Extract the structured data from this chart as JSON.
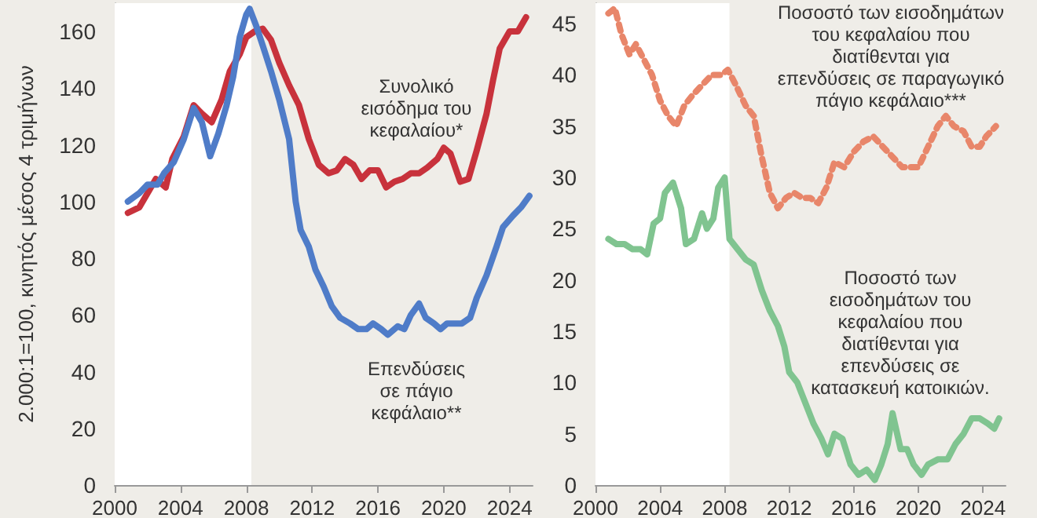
{
  "chart_data": [
    {
      "type": "line",
      "ylabel": "2.000:1=100, κινητός μέσος 4 τριμήνων",
      "xlim": [
        2000,
        2025.4
      ],
      "xticks": [
        2000,
        2004,
        2008,
        2012,
        2016,
        2020,
        2024
      ],
      "ylim": [
        0,
        170
      ],
      "yticks": [
        0,
        20,
        40,
        60,
        80,
        100,
        120,
        140,
        160
      ],
      "grid": false,
      "marker": "none",
      "line_style": "solid",
      "bands": [
        {
          "axis": "x",
          "from": 2000,
          "to": 2008.3,
          "color": "#ffffff"
        }
      ],
      "series": [
        {
          "name": "Συνολικό εισόδημα του κεφαλαίου*",
          "color": "#c8323c",
          "x": [
            2000.8,
            2001.5,
            2002,
            2002.5,
            2003.1,
            2003.5,
            2004.2,
            2004.8,
            2005.3,
            2005.9,
            2006.5,
            2007,
            2007.6,
            2008,
            2008.5,
            2009,
            2009.5,
            2010,
            2010.6,
            2011.2,
            2011.8,
            2012.4,
            2013,
            2013.5,
            2014,
            2014.5,
            2015,
            2015.5,
            2016,
            2016.5,
            2017,
            2017.5,
            2018,
            2018.5,
            2019,
            2019.6,
            2020,
            2020.4,
            2021,
            2021.5,
            2022,
            2022.6,
            2023,
            2023.4,
            2024,
            2024.5,
            2025
          ],
          "values": [
            96,
            98,
            103,
            108,
            105,
            115,
            123,
            134,
            131,
            128,
            136,
            146,
            152,
            158,
            160,
            161,
            157,
            149,
            141,
            134,
            122,
            113,
            110,
            111,
            115,
            113,
            108,
            111,
            111,
            105,
            107,
            108,
            110,
            110,
            112,
            115,
            119,
            117,
            107,
            108,
            118,
            131,
            143,
            154,
            160,
            160,
            165
          ]
        },
        {
          "name": "Επενδύσεις σε πάγιο κεφάλαιο**",
          "color": "#4f7cc8",
          "x": [
            2000.8,
            2001.5,
            2002,
            2002.6,
            2003,
            2003.6,
            2004.2,
            2004.8,
            2005.3,
            2005.8,
            2006.3,
            2006.8,
            2007.2,
            2007.6,
            2008,
            2008.2,
            2008.6,
            2009,
            2009.5,
            2010,
            2010.6,
            2011,
            2011.3,
            2011.8,
            2012.2,
            2012.7,
            2013.2,
            2013.7,
            2014.3,
            2014.8,
            2015.3,
            2015.7,
            2016.2,
            2016.6,
            2017.2,
            2017.6,
            2018,
            2018.5,
            2018.9,
            2019.4,
            2019.8,
            2020.2,
            2020.6,
            2021.1,
            2021.6,
            2022,
            2022.6,
            2023.2,
            2023.6,
            2024.2,
            2024.7,
            2025.2
          ],
          "values": [
            100,
            103,
            106,
            106,
            110,
            114,
            122,
            133,
            128,
            116,
            124,
            134,
            144,
            158,
            166,
            168,
            162,
            155,
            146,
            136,
            122,
            100,
            90,
            84,
            76,
            70,
            63,
            59,
            57,
            55,
            55,
            57,
            55,
            53,
            56,
            55,
            60,
            64,
            59,
            57,
            55,
            57,
            57,
            57,
            59,
            66,
            74,
            84,
            91,
            95,
            98,
            102
          ]
        }
      ]
    },
    {
      "type": "line",
      "xlim": [
        2000,
        2025.4
      ],
      "xticks": [
        2000,
        2004,
        2008,
        2012,
        2016,
        2020,
        2024
      ],
      "ylim": [
        0,
        47
      ],
      "yticks": [
        0,
        5,
        10,
        15,
        20,
        25,
        30,
        35,
        40,
        45
      ],
      "grid": false,
      "marker": "none",
      "bands": [
        {
          "axis": "x",
          "from": 2000,
          "to": 2008.3,
          "color": "#ffffff"
        }
      ],
      "series": [
        {
          "name": "Ποσοστό των εισοδημάτων του κεφαλαίου που διατίθενται για επενδύσεις σε παραγωγικό πάγιο κεφάλαιο***",
          "color": "#e8866a",
          "line_style": "dotted",
          "x": [
            2000.8,
            2001.2,
            2001.6,
            2002.1,
            2002.5,
            2003,
            2003.5,
            2004,
            2004.5,
            2005,
            2005.5,
            2006,
            2006.6,
            2007.2,
            2007.8,
            2008.2,
            2008.7,
            2009.3,
            2009.8,
            2010.3,
            2010.8,
            2011.3,
            2011.8,
            2012.3,
            2012.8,
            2013.3,
            2013.8,
            2014.3,
            2014.8,
            2015.4,
            2016,
            2016.6,
            2017.2,
            2017.8,
            2018.4,
            2019,
            2019.6,
            2020,
            2020.6,
            2021.2,
            2021.7,
            2022.2,
            2022.8,
            2023.3,
            2023.8,
            2024.2,
            2024.8
          ],
          "values": [
            46,
            46.5,
            44,
            42,
            43,
            41.5,
            40,
            37.5,
            36,
            35,
            37,
            38,
            39,
            40,
            40,
            40.5,
            39,
            37,
            36,
            32,
            28.5,
            27,
            28,
            28.5,
            28,
            28,
            27.5,
            29,
            31.5,
            31,
            32.5,
            33.5,
            34,
            33,
            32,
            31,
            31,
            31,
            33,
            35,
            36,
            35,
            34.5,
            33,
            33,
            34,
            35
          ]
        },
        {
          "name": "Ποσοστό των εισοδημάτων του κεφαλαίου που διατίθενται για επενδύσεις σε κατασκευή κατοικιών.",
          "color": "#80c490",
          "line_style": "solid",
          "x": [
            2000.8,
            2001.3,
            2001.8,
            2002.3,
            2002.8,
            2003.2,
            2003.6,
            2004,
            2004.3,
            2004.8,
            2005.3,
            2005.6,
            2006.1,
            2006.6,
            2006.9,
            2007.3,
            2007.6,
            2008,
            2008.3,
            2008.8,
            2009.3,
            2009.8,
            2010.3,
            2010.8,
            2011.3,
            2011.7,
            2012,
            2012.5,
            2013,
            2013.5,
            2014,
            2014.4,
            2014.8,
            2015.3,
            2015.8,
            2016.3,
            2016.8,
            2017.3,
            2017.7,
            2018.1,
            2018.4,
            2018.9,
            2019.3,
            2019.7,
            2020.2,
            2020.6,
            2021.2,
            2021.8,
            2022.3,
            2022.8,
            2023.3,
            2023.8,
            2024.3,
            2024.7,
            2025
          ],
          "values": [
            24,
            23.5,
            23.5,
            23,
            23,
            22.5,
            25.5,
            26,
            28.5,
            29.5,
            27,
            23.5,
            24,
            26.5,
            25,
            26,
            29,
            30,
            24,
            23,
            22,
            21.5,
            19,
            17,
            15.5,
            13.5,
            11,
            10,
            8,
            6,
            4.5,
            3,
            5,
            4.5,
            2,
            1,
            1.5,
            0.5,
            2,
            4,
            7,
            3.5,
            3.5,
            2,
            1,
            2,
            2.5,
            2.5,
            4,
            5,
            6.5,
            6.5,
            6,
            5.5,
            6.5
          ]
        }
      ]
    }
  ]
}
